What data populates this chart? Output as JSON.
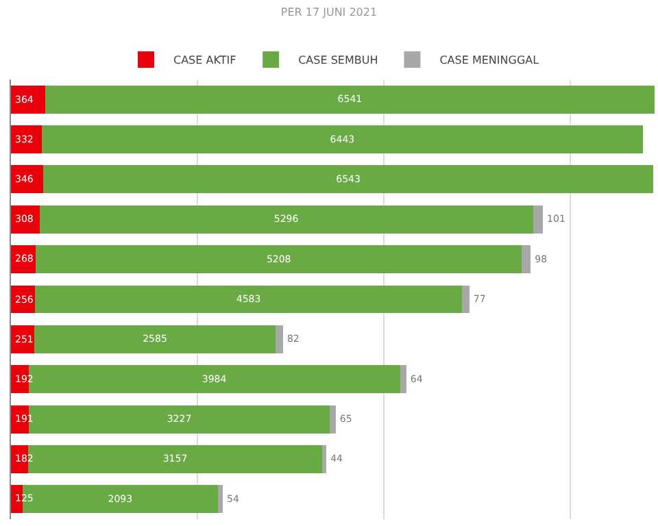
{
  "chart_data": {
    "type": "bar",
    "orientation": "horizontal",
    "stacked": true,
    "title": "PER 17 JUNI 2021",
    "categories": [
      null,
      null,
      null,
      null,
      null,
      null,
      null,
      null,
      null,
      null,
      null
    ],
    "series": [
      {
        "name": "CASE AKTIF",
        "color": "#e8000b",
        "values": [
          364,
          332,
          346,
          308,
          268,
          256,
          251,
          192,
          191,
          182,
          125
        ]
      },
      {
        "name": "CASE SEMBUH",
        "color": "#6aaa44",
        "values": [
          6541,
          6443,
          6543,
          5296,
          5208,
          4583,
          2585,
          3984,
          3227,
          3157,
          2093
        ]
      },
      {
        "name": "CASE MENINGGAL",
        "color": "#a8a8a8",
        "values": [
          null,
          null,
          null,
          101,
          98,
          77,
          82,
          64,
          65,
          44,
          54
        ]
      }
    ],
    "xlim": [
      0,
      6910
    ],
    "xticks": [
      {
        "value": 0,
        "label": null
      },
      {
        "value": 2000,
        "label": null
      },
      {
        "value": 4000,
        "label": null
      },
      {
        "value": 6000,
        "label": null
      }
    ],
    "grid": "x",
    "legend": "top",
    "data_labels": true
  }
}
